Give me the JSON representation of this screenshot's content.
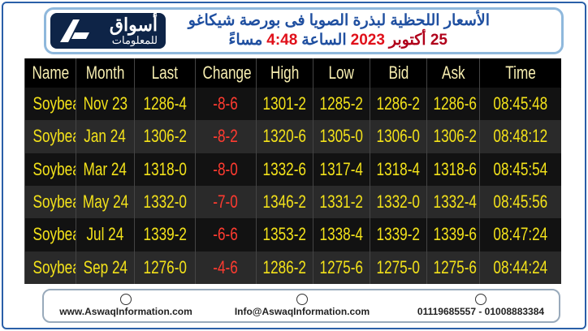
{
  "header": {
    "logo": {
      "name": "أسواق",
      "tagline": "للمعلومات"
    },
    "title": "الأسعار اللحظية لبذرة الصويا فى بورصة شيكاغو",
    "subtitle": [
      "25 أكتوبر",
      "2023",
      "الساعة",
      "4:48",
      "مساءً"
    ]
  },
  "table": {
    "columns": [
      "Name",
      "Month",
      "Last",
      "Change",
      "High",
      "Low",
      "Bid",
      "Ask",
      "Time"
    ],
    "rows": [
      [
        "Soybean",
        "Nov 23",
        "1286-4",
        "-8-6",
        "1301-2",
        "1285-2",
        "1286-2",
        "1286-6",
        "08:45:48"
      ],
      [
        "Soybean",
        "Jan 24",
        "1306-2",
        "-8-2",
        "1320-6",
        "1305-0",
        "1306-0",
        "1306-2",
        "08:48:12"
      ],
      [
        "Soybean",
        "Mar 24",
        "1318-0",
        "-8-0",
        "1332-6",
        "1317-4",
        "1318-4",
        "1318-6",
        "08:45:54"
      ],
      [
        "Soybean",
        "May 24",
        "1332-0",
        "-7-0",
        "1346-2",
        "1331-2",
        "1332-0",
        "1332-4",
        "08:45:56"
      ],
      [
        "Soybean",
        "Jul 24",
        "1339-2",
        "-6-6",
        "1353-2",
        "1338-4",
        "1339-2",
        "1339-6",
        "08:47:24"
      ],
      [
        "Soybean",
        "Sep 24",
        "1276-0",
        "-4-6",
        "1286-2",
        "1275-6",
        "1275-0",
        "1275-6",
        "08:44:24"
      ]
    ]
  },
  "footer": {
    "website": "www.AswaqInformation.com",
    "email": "Info@AswaqInformation.com",
    "phone": "01119685557 - 01008883384"
  }
}
